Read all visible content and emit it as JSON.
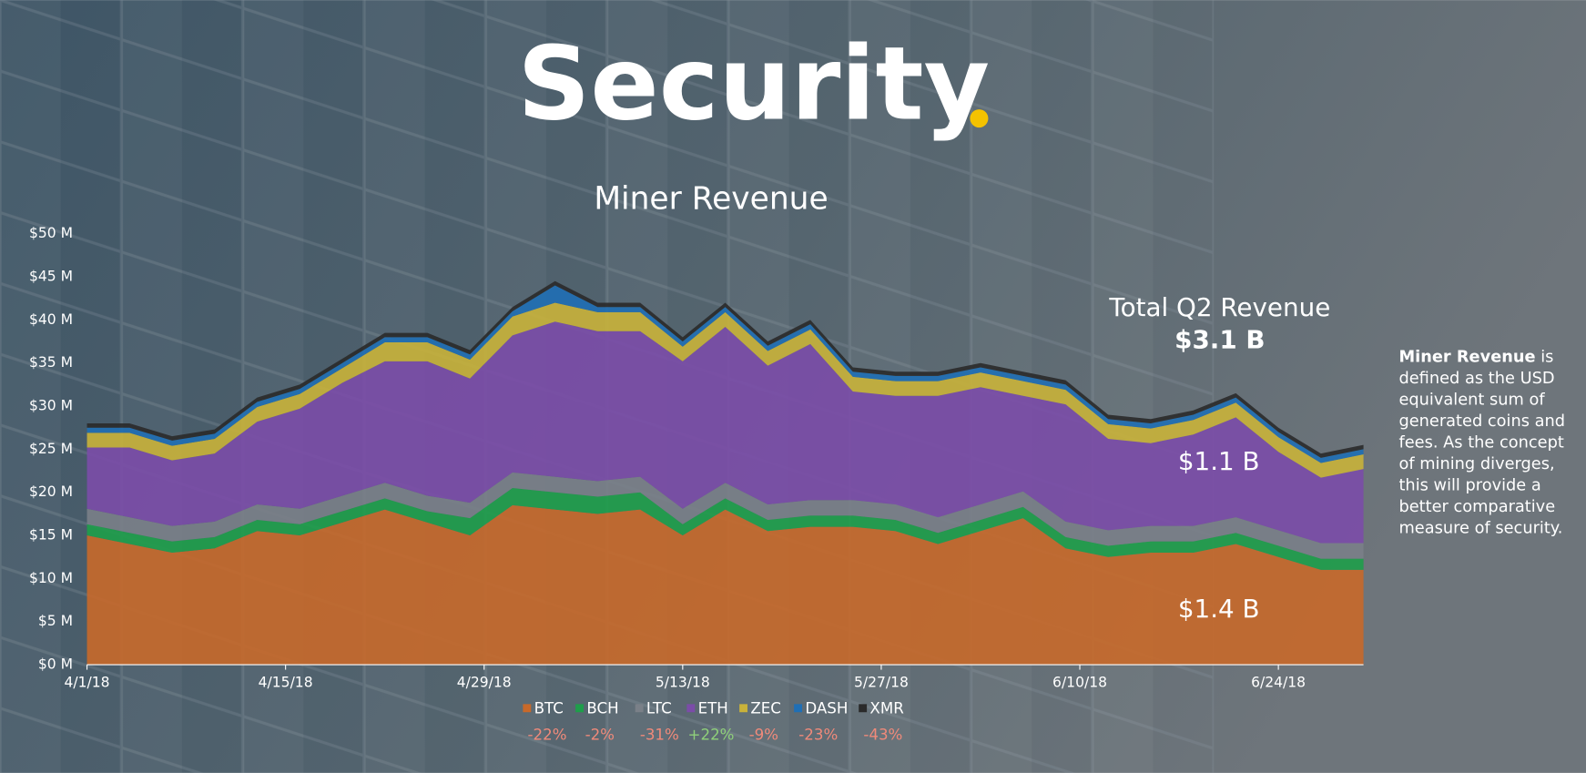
{
  "header": {
    "title": "Security"
  },
  "chart_data": {
    "type": "stacked_area",
    "title": "Miner Revenue",
    "x": [
      "4/1/18",
      "4/4/18",
      "4/7/18",
      "4/10/18",
      "4/13/18",
      "4/16/18",
      "4/19/18",
      "4/22/18",
      "4/25/18",
      "4/28/18",
      "5/1/18",
      "5/4/18",
      "5/7/18",
      "5/10/18",
      "5/13/18",
      "5/16/18",
      "5/19/18",
      "5/22/18",
      "5/25/18",
      "5/28/18",
      "5/31/18",
      "6/3/18",
      "6/6/18",
      "6/9/18",
      "6/12/18",
      "6/15/18",
      "6/18/18",
      "6/21/18",
      "6/24/18",
      "6/27/18",
      "6/30/18"
    ],
    "xlim": [
      "4/1/18",
      "6/30/18"
    ],
    "xticks": [
      "4/1/18",
      "4/15/18",
      "4/29/18",
      "5/13/18",
      "5/27/18",
      "6/10/18",
      "6/24/18"
    ],
    "ylim": [
      0,
      50
    ],
    "yticks": [
      {
        "value": 0,
        "label": "$0 M"
      },
      {
        "value": 5,
        "label": "$5 M"
      },
      {
        "value": 10,
        "label": "$10 M"
      },
      {
        "value": 15,
        "label": "$15 M"
      },
      {
        "value": 20,
        "label": "$20 M"
      },
      {
        "value": 25,
        "label": "$25 M"
      },
      {
        "value": 30,
        "label": "$30 M"
      },
      {
        "value": 35,
        "label": "$35 M"
      },
      {
        "value": 40,
        "label": "$40 M"
      },
      {
        "value": 45,
        "label": "$45 M"
      },
      {
        "value": 50,
        "label": "$50 M"
      }
    ],
    "series": [
      {
        "name": "BTC",
        "color": "#c8692a",
        "change": "-22%",
        "values": [
          15,
          14,
          13,
          13.5,
          15.5,
          15,
          16.5,
          18,
          16.5,
          15,
          18.5,
          18,
          17.5,
          18,
          15,
          18,
          15.5,
          16,
          16,
          15.5,
          14,
          15.5,
          17,
          13.5,
          12.5,
          13,
          13,
          14,
          12.5,
          11,
          11
        ]
      },
      {
        "name": "BCH",
        "color": "#1e9e4a",
        "change": "-2%",
        "values": [
          1.3,
          1.3,
          1.3,
          1.3,
          1.3,
          1.3,
          1.3,
          1.3,
          1.3,
          2,
          2,
          2,
          2,
          2,
          1.3,
          1.3,
          1.3,
          1.3,
          1.3,
          1.3,
          1.3,
          1.3,
          1.3,
          1.3,
          1.3,
          1.3,
          1.3,
          1.3,
          1.3,
          1.3,
          1.3
        ]
      },
      {
        "name": "LTC",
        "color": "#7a8088",
        "change": "-31%",
        "values": [
          1.8,
          1.8,
          1.8,
          1.8,
          1.8,
          1.8,
          1.8,
          1.8,
          1.8,
          1.8,
          1.8,
          1.8,
          1.8,
          1.8,
          1.8,
          1.8,
          1.8,
          1.8,
          1.8,
          1.8,
          1.8,
          1.8,
          1.8,
          1.8,
          1.8,
          1.8,
          1.8,
          1.8,
          1.8,
          1.8,
          1.8
        ]
      },
      {
        "name": "ETH",
        "color": "#7b4ca8",
        "change": "+22%",
        "values": [
          7.1,
          8.1,
          7.6,
          7.9,
          9.6,
          11.6,
          13.1,
          14.1,
          15.6,
          14.4,
          15.9,
          18,
          17.4,
          16.9,
          17.1,
          18.1,
          16.1,
          18.1,
          12.6,
          12.6,
          14.1,
          13.6,
          11.1,
          13.6,
          10.6,
          9.6,
          10.6,
          11.6,
          9.1,
          7.6,
          8.6
        ]
      },
      {
        "name": "ZEC",
        "color": "#c9b23a",
        "change": "-9%",
        "values": [
          1.7,
          1.7,
          1.7,
          1.7,
          1.7,
          1.7,
          1.7,
          2.2,
          2.2,
          2.2,
          2.2,
          2.2,
          2.2,
          2.2,
          1.7,
          1.7,
          1.7,
          1.7,
          1.7,
          1.7,
          1.7,
          1.7,
          1.7,
          1.7,
          1.7,
          1.7,
          1.7,
          1.7,
          1.7,
          1.7,
          1.7
        ]
      },
      {
        "name": "DASH",
        "color": "#1f6fb5",
        "change": "-23%",
        "values": [
          0.6,
          0.6,
          0.6,
          0.6,
          0.6,
          0.6,
          0.6,
          0.6,
          0.6,
          0.6,
          0.6,
          2,
          0.6,
          0.6,
          0.6,
          0.6,
          0.6,
          0.6,
          0.6,
          0.6,
          0.6,
          0.6,
          0.6,
          0.6,
          0.6,
          0.6,
          0.6,
          0.6,
          0.6,
          0.6,
          0.6
        ]
      },
      {
        "name": "XMR",
        "color": "#2a2a2a",
        "change": "-43%",
        "values": [
          0.5,
          0.5,
          0.5,
          0.5,
          0.5,
          0.5,
          0.5,
          0.5,
          0.5,
          0.5,
          0.5,
          0.5,
          0.5,
          0.5,
          0.5,
          0.5,
          0.5,
          0.5,
          0.5,
          0.5,
          0.5,
          0.5,
          0.5,
          0.5,
          0.5,
          0.5,
          0.5,
          0.5,
          0.5,
          0.5,
          0.5
        ]
      }
    ],
    "annotations": [
      "Total Q2 Revenue",
      "$3.1 B",
      "$1.1 B",
      "$1.4 B"
    ]
  },
  "side_note": {
    "term": "Miner Revenue",
    "lines": [
      " is",
      "defined as the USD",
      "equivalent sum of",
      "generated coins and",
      "fees. As the concept",
      "of mining diverges,",
      "this will provide a",
      "better comparative",
      "measure of security."
    ]
  }
}
